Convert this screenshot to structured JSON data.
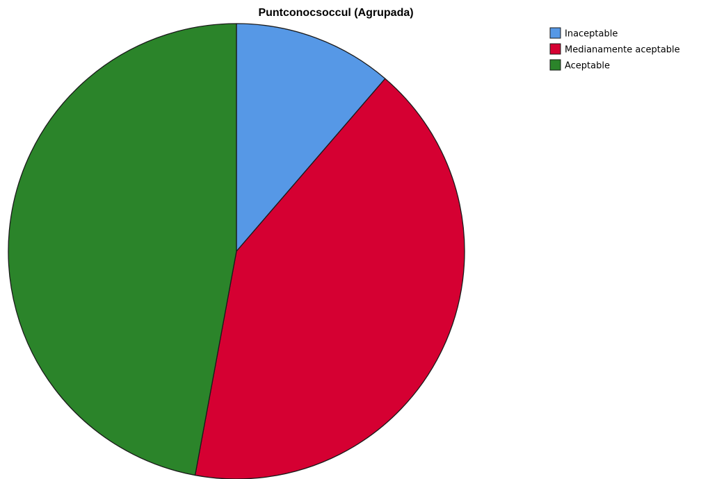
{
  "chart_data": {
    "type": "pie",
    "title": "Puntconocsoccul (Agrupada)",
    "categories": [
      "Inaceptable",
      "Medianamente aceptable",
      "Aceptable"
    ],
    "values": [
      11.3,
      41.6,
      47.1
    ],
    "colors": [
      "#5698e6",
      "#d50032",
      "#2b842a"
    ],
    "start_angle_deg": 0,
    "direction": "clockwise",
    "legend_position": "top-right"
  }
}
